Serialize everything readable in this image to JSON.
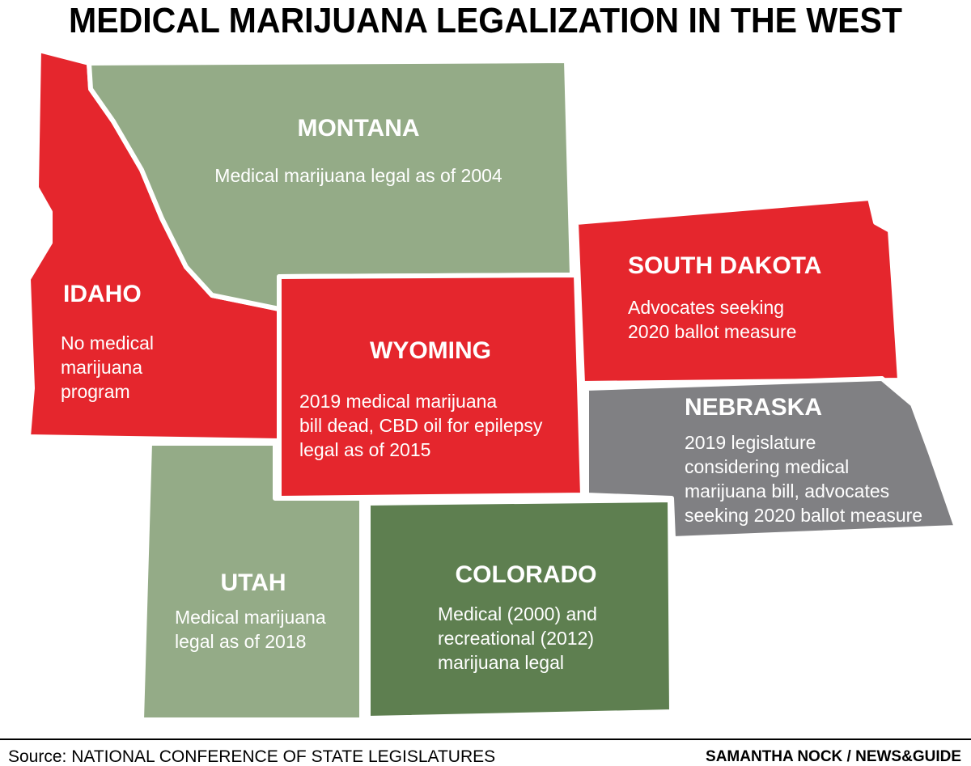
{
  "header": {
    "title": "MEDICAL MARIJUANA LEGALIZATION IN THE WEST"
  },
  "states": [
    {
      "name": "MONTANA",
      "lines": [
        "Medical marijuana legal as of 2004"
      ]
    },
    {
      "name": "IDAHO",
      "lines": [
        "No medical",
        "marijuana",
        "program"
      ]
    },
    {
      "name": "WYOMING",
      "lines": [
        "2019 medical marijuana",
        "bill dead, CBD oil for epilepsy",
        "legal as of 2015"
      ]
    },
    {
      "name": "SOUTH DAKOTA",
      "lines": [
        "Advocates seeking",
        "2020 ballot measure"
      ]
    },
    {
      "name": "NEBRASKA",
      "lines": [
        "2019 legislature",
        "considering medical",
        "marijuana bill, advocates",
        "seeking 2020 ballot measure"
      ]
    },
    {
      "name": "UTAH",
      "lines": [
        "Medical marijuana",
        "legal as of 2018"
      ]
    },
    {
      "name": "COLORADO",
      "lines": [
        "Medical (2000) and",
        "recreational (2012)",
        "marijuana legal"
      ]
    }
  ],
  "footer": {
    "source": "Source: NATIONAL CONFERENCE OF STATE LEGISLATURES",
    "credit": "SAMANTHA NOCK / NEWS&GUIDE"
  }
}
